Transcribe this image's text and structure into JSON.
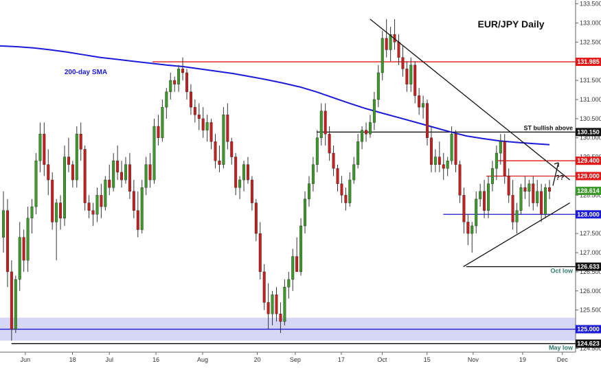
{
  "chart_data": {
    "type": "candlestick",
    "title": "EUR/JPY Daily",
    "ylim": [
      124.4,
      133.6
    ],
    "y_ticks": [
      "133.500",
      "133.000",
      "132.500",
      "132.000",
      "131.500",
      "131.000",
      "130.500",
      "130.000",
      "129.500",
      "129.000",
      "128.500",
      "128.000",
      "127.500",
      "127.000",
      "126.500",
      "126.000",
      "125.500",
      "125.000",
      "124.500"
    ],
    "x_ticks": [
      "Jun",
      "18",
      "Jul",
      "16",
      "Aug",
      "20",
      "Sep",
      "17",
      "Oct",
      "15",
      "Nov",
      "19",
      "Dec"
    ],
    "colors": {
      "up": "#3c9a28",
      "down": "#c81e1e",
      "sma": "#1a1ad8",
      "resistance": "#e01818",
      "support": "#1a1ad8",
      "neutral": "#000000",
      "band": "#c8c8f4"
    },
    "candles_ohlc": [
      [
        127.4,
        128.6,
        127.0,
        128.1
      ],
      [
        128.1,
        128.4,
        126.1,
        126.5
      ],
      [
        126.5,
        126.8,
        124.7,
        125.0
      ],
      [
        125.0,
        126.4,
        124.9,
        126.3
      ],
      [
        126.3,
        127.8,
        126.0,
        127.4
      ],
      [
        127.4,
        127.6,
        126.5,
        126.8
      ],
      [
        126.8,
        128.2,
        126.5,
        127.9
      ],
      [
        127.9,
        128.4,
        127.5,
        128.2
      ],
      [
        128.2,
        129.6,
        128.0,
        129.4
      ],
      [
        129.4,
        130.4,
        129.1,
        130.1
      ],
      [
        130.1,
        130.4,
        129.0,
        129.3
      ],
      [
        129.3,
        129.7,
        128.5,
        128.9
      ],
      [
        128.9,
        129.1,
        127.6,
        127.8
      ],
      [
        127.8,
        128.4,
        126.8,
        128.3
      ],
      [
        128.3,
        128.5,
        127.6,
        127.9
      ],
      [
        127.9,
        129.8,
        127.7,
        129.5
      ],
      [
        129.5,
        130.0,
        129.1,
        129.3
      ],
      [
        129.3,
        129.4,
        128.7,
        128.9
      ],
      [
        128.9,
        130.3,
        128.7,
        130.1
      ],
      [
        130.1,
        130.4,
        129.4,
        129.7
      ],
      [
        129.7,
        129.8,
        128.1,
        128.3
      ],
      [
        128.3,
        128.5,
        127.9,
        128.1
      ],
      [
        128.1,
        128.3,
        127.7,
        128.0
      ],
      [
        128.0,
        128.7,
        127.8,
        128.5
      ],
      [
        128.5,
        128.8,
        127.9,
        128.2
      ],
      [
        128.2,
        129.0,
        128.1,
        128.9
      ],
      [
        128.9,
        129.3,
        128.5,
        128.7
      ],
      [
        128.7,
        129.6,
        128.6,
        129.4
      ],
      [
        129.4,
        129.8,
        128.9,
        129.1
      ],
      [
        129.1,
        129.4,
        128.7,
        128.9
      ],
      [
        128.9,
        129.5,
        128.8,
        129.3
      ],
      [
        129.3,
        129.6,
        128.4,
        128.6
      ],
      [
        128.6,
        128.9,
        127.9,
        128.1
      ],
      [
        128.1,
        128.6,
        127.4,
        127.6
      ],
      [
        127.6,
        128.9,
        127.5,
        128.7
      ],
      [
        128.7,
        129.5,
        128.5,
        129.3
      ],
      [
        129.3,
        129.6,
        128.7,
        128.9
      ],
      [
        128.9,
        130.5,
        128.8,
        130.3
      ],
      [
        130.3,
        130.6,
        129.8,
        130.0
      ],
      [
        130.0,
        131.0,
        129.9,
        130.8
      ],
      [
        130.8,
        131.3,
        130.5,
        131.2
      ],
      [
        131.2,
        131.7,
        131.0,
        131.5
      ],
      [
        131.5,
        131.6,
        131.2,
        131.4
      ],
      [
        131.4,
        131.9,
        131.2,
        131.8
      ],
      [
        131.8,
        132.1,
        131.5,
        131.7
      ],
      [
        131.7,
        131.8,
        131.0,
        131.2
      ],
      [
        131.2,
        131.4,
        130.6,
        130.8
      ],
      [
        130.8,
        131.0,
        130.4,
        130.6
      ],
      [
        130.6,
        130.9,
        130.2,
        130.5
      ],
      [
        130.5,
        130.8,
        130.0,
        130.2
      ],
      [
        130.2,
        130.6,
        129.9,
        130.4
      ],
      [
        130.4,
        130.5,
        129.7,
        129.9
      ],
      [
        129.9,
        130.1,
        129.2,
        129.4
      ],
      [
        129.4,
        129.8,
        129.1,
        129.3
      ],
      [
        129.3,
        130.8,
        129.2,
        130.6
      ],
      [
        130.6,
        130.9,
        129.7,
        129.9
      ],
      [
        129.9,
        130.0,
        129.3,
        129.5
      ],
      [
        129.5,
        129.6,
        128.5,
        128.7
      ],
      [
        128.7,
        129.0,
        128.4,
        128.9
      ],
      [
        128.9,
        129.4,
        128.6,
        129.3
      ],
      [
        129.3,
        129.5,
        128.8,
        128.9
      ],
      [
        128.9,
        129.0,
        128.1,
        128.3
      ],
      [
        128.3,
        128.4,
        127.3,
        127.5
      ],
      [
        127.5,
        127.8,
        126.3,
        126.5
      ],
      [
        126.5,
        126.7,
        125.5,
        125.7
      ],
      [
        125.7,
        126.2,
        125.0,
        125.4
      ],
      [
        125.4,
        126.0,
        125.1,
        125.9
      ],
      [
        125.9,
        126.1,
        125.2,
        125.4
      ],
      [
        125.4,
        125.7,
        124.9,
        125.2
      ],
      [
        125.2,
        126.3,
        125.1,
        126.1
      ],
      [
        126.1,
        126.5,
        125.8,
        126.3
      ],
      [
        126.3,
        127.1,
        126.0,
        126.9
      ],
      [
        126.9,
        127.4,
        126.6,
        126.5
      ],
      [
        126.5,
        127.9,
        126.4,
        127.7
      ],
      [
        127.7,
        128.6,
        127.5,
        128.4
      ],
      [
        128.4,
        129.0,
        128.2,
        128.8
      ],
      [
        128.8,
        129.5,
        128.6,
        129.3
      ],
      [
        129.3,
        130.2,
        129.1,
        130.0
      ],
      [
        130.0,
        130.9,
        129.8,
        130.7
      ],
      [
        130.7,
        130.9,
        129.8,
        130.1
      ],
      [
        130.1,
        130.3,
        129.4,
        129.6
      ],
      [
        129.6,
        129.8,
        129.0,
        129.2
      ],
      [
        129.2,
        129.3,
        128.6,
        128.8
      ],
      [
        128.8,
        129.0,
        128.3,
        128.5
      ],
      [
        128.5,
        128.7,
        128.1,
        128.3
      ],
      [
        128.3,
        129.1,
        128.2,
        128.9
      ],
      [
        128.9,
        129.5,
        128.8,
        129.3
      ],
      [
        129.3,
        130.1,
        129.2,
        129.9
      ],
      [
        129.9,
        130.3,
        129.7,
        130.2
      ],
      [
        130.2,
        130.4,
        129.9,
        130.1
      ],
      [
        130.1,
        130.6,
        130.0,
        130.4
      ],
      [
        130.4,
        131.2,
        130.2,
        131.0
      ],
      [
        131.0,
        131.9,
        130.8,
        131.7
      ],
      [
        131.7,
        132.8,
        131.5,
        132.6
      ],
      [
        132.6,
        133.1,
        132.1,
        132.3
      ],
      [
        132.3,
        132.9,
        132.0,
        132.7
      ],
      [
        132.7,
        133.1,
        132.3,
        132.5
      ],
      [
        132.5,
        132.7,
        131.9,
        132.1
      ],
      [
        132.1,
        132.4,
        131.6,
        131.8
      ],
      [
        131.8,
        132.0,
        131.2,
        131.4
      ],
      [
        131.4,
        132.1,
        131.2,
        131.9
      ],
      [
        131.9,
        132.0,
        130.9,
        131.1
      ],
      [
        131.1,
        131.3,
        130.6,
        130.8
      ],
      [
        130.8,
        131.1,
        130.5,
        130.9
      ],
      [
        130.9,
        131.0,
        129.8,
        130.0
      ],
      [
        130.0,
        130.3,
        129.1,
        129.3
      ],
      [
        129.3,
        129.7,
        129.1,
        129.5
      ],
      [
        129.5,
        129.9,
        129.1,
        129.3
      ],
      [
        129.3,
        129.6,
        128.9,
        129.2
      ],
      [
        129.2,
        129.5,
        129.0,
        129.4
      ],
      [
        129.4,
        130.3,
        129.3,
        130.1
      ],
      [
        130.1,
        130.2,
        129.1,
        129.3
      ],
      [
        129.3,
        129.4,
        128.3,
        128.5
      ],
      [
        128.5,
        128.7,
        127.5,
        127.8
      ],
      [
        127.8,
        128.0,
        127.2,
        127.5
      ],
      [
        127.5,
        127.8,
        127.0,
        127.7
      ],
      [
        127.7,
        128.6,
        127.5,
        128.4
      ],
      [
        128.4,
        128.8,
        128.2,
        128.6
      ],
      [
        128.6,
        128.9,
        127.9,
        128.1
      ],
      [
        128.1,
        129.0,
        127.9,
        128.8
      ],
      [
        128.8,
        129.4,
        128.6,
        129.2
      ],
      [
        129.2,
        129.8,
        128.9,
        129.6
      ],
      [
        129.6,
        130.1,
        129.3,
        129.9
      ],
      [
        129.9,
        130.1,
        128.8,
        129.0
      ],
      [
        129.0,
        129.2,
        128.3,
        128.5
      ],
      [
        128.5,
        128.9,
        127.6,
        127.8
      ],
      [
        127.8,
        128.3,
        127.5,
        128.1
      ],
      [
        128.1,
        128.8,
        128.0,
        128.7
      ],
      [
        128.7,
        129.0,
        128.4,
        128.6
      ],
      [
        128.6,
        128.9,
        128.2,
        128.8
      ],
      [
        128.8,
        129.0,
        128.1,
        128.3
      ],
      [
        128.3,
        128.9,
        128.2,
        128.6
      ],
      [
        128.6,
        128.8,
        127.8,
        128.0
      ],
      [
        128.0,
        128.8,
        127.9,
        128.7
      ],
      [
        128.7,
        128.9,
        128.4,
        128.6
      ]
    ],
    "sma_label": "200-day SMA",
    "sma_values": [
      132.4,
      132.38,
      132.35,
      132.3,
      132.24,
      132.17,
      132.1,
      132.05,
      132.0,
      131.95,
      131.9,
      131.86,
      131.8,
      131.74,
      131.68,
      131.6,
      131.52,
      131.43,
      131.33,
      131.2,
      131.05,
      130.9,
      130.76,
      130.64,
      130.52,
      130.4,
      130.28,
      130.16,
      130.05,
      129.98,
      129.92,
      129.88,
      129.85,
      129.82
    ],
    "levels": [
      {
        "value": 131.985,
        "label": "131.985",
        "kind": "resistance",
        "x_from": 0.265
      },
      {
        "value": 130.15,
        "label": "130.150",
        "kind": "neutral",
        "x_from": 0.55,
        "note": "ST bullish above"
      },
      {
        "value": 129.4,
        "label": "129.400",
        "kind": "resistance",
        "x_from": 0.865
      },
      {
        "value": 129.0,
        "label": "129.000",
        "kind": "resistance",
        "x_from": 0.845
      },
      {
        "value": 128.0,
        "label": "128.000",
        "kind": "support",
        "x_from": 0.77
      },
      {
        "value": 126.633,
        "label": "126.633",
        "kind": "neutral",
        "x_from": 0.81,
        "note": "Oct low"
      },
      {
        "value": 125.0,
        "label": "125.000",
        "kind": "support",
        "x_from": 0.0
      },
      {
        "value": 124.623,
        "label": "124.623",
        "kind": "neutral",
        "x_from": 0.02,
        "note": "May low"
      }
    ],
    "current_price": {
      "value": 128.614,
      "label": "128.614"
    },
    "band": [
      124.7,
      125.3
    ],
    "triangle": {
      "upper": [
        [
          0.643,
          133.1
        ],
        [
          0.99,
          128.9
        ]
      ],
      "lower": [
        [
          0.805,
          126.633
        ],
        [
          0.99,
          128.3
        ]
      ]
    },
    "projection_label": "??"
  }
}
